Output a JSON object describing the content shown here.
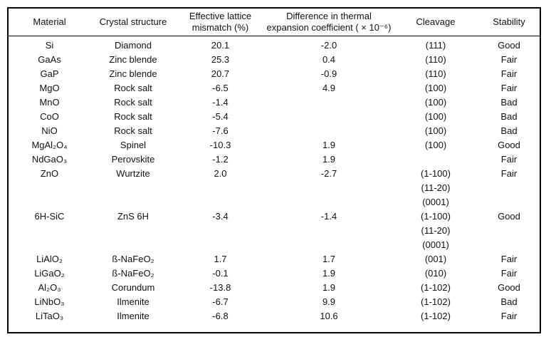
{
  "colors": {
    "background": "#ffffff",
    "border": "#000000",
    "text": "#111111"
  },
  "table": {
    "headers": [
      {
        "lines": [
          "Material"
        ]
      },
      {
        "lines": [
          "Crystal structure"
        ]
      },
      {
        "lines": [
          "Effective lattice",
          "mismatch (%)"
        ]
      },
      {
        "lines": [
          "Difference in thermal",
          "expansion coefficient ( × 10⁻⁶)"
        ]
      },
      {
        "lines": [
          "Cleavage"
        ]
      },
      {
        "lines": [
          "Stability"
        ]
      }
    ],
    "rows": [
      {
        "material": "Si",
        "structure": "Diamond",
        "mismatch": "20.1",
        "diff": "-2.0",
        "cleavage": [
          "(111)"
        ],
        "stability": "Good"
      },
      {
        "material": "GaAs",
        "structure": "Zinc blende",
        "mismatch": "25.3",
        "diff": "0.4",
        "cleavage": [
          "(110)"
        ],
        "stability": "Fair"
      },
      {
        "material": "GaP",
        "structure": "Zinc blende",
        "mismatch": "20.7",
        "diff": "-0.9",
        "cleavage": [
          "(110)"
        ],
        "stability": "Fair"
      },
      {
        "material": "MgO",
        "structure": "Rock salt",
        "mismatch": "-6.5",
        "diff": "4.9",
        "cleavage": [
          "(100)"
        ],
        "stability": "Fair"
      },
      {
        "material": "MnO",
        "structure": "Rock salt",
        "mismatch": "-1.4",
        "diff": "",
        "cleavage": [
          "(100)"
        ],
        "stability": "Bad"
      },
      {
        "material": "CoO",
        "structure": "Rock salt",
        "mismatch": "-5.4",
        "diff": "",
        "cleavage": [
          "(100)"
        ],
        "stability": "Bad"
      },
      {
        "material": "NiO",
        "structure": "Rock salt",
        "mismatch": "-7.6",
        "diff": "",
        "cleavage": [
          "(100)"
        ],
        "stability": "Bad"
      },
      {
        "material": "MgAl₂O₄",
        "structure": "Spinel",
        "mismatch": "-10.3",
        "diff": "1.9",
        "cleavage": [
          "(100)"
        ],
        "stability": "Good"
      },
      {
        "material": "NdGaO₃",
        "structure": "Perovskite",
        "mismatch": "-1.2",
        "diff": "1.9",
        "cleavage": [],
        "stability": "Fair"
      },
      {
        "material": "ZnO",
        "structure": "Wurtzite",
        "mismatch": "2.0",
        "diff": "-2.7",
        "cleavage": [
          "(1-100)",
          "(11-20)",
          "(0001)"
        ],
        "stability": "Fair"
      },
      {
        "material": "6H-SiC",
        "structure": "ZnS 6H",
        "mismatch": "-3.4",
        "diff": "-1.4",
        "cleavage": [
          "(1-100)",
          "(11-20)",
          "(0001)"
        ],
        "stability": "Good"
      },
      {
        "material": "LiAlO₂",
        "structure": "ß-NaFeO₂",
        "mismatch": "1.7",
        "diff": "1.7",
        "cleavage": [
          "(001)"
        ],
        "stability": "Fair"
      },
      {
        "material": "LiGaO₂",
        "structure": "ß-NaFeO₂",
        "mismatch": "-0.1",
        "diff": "1.9",
        "cleavage": [
          "(010)"
        ],
        "stability": "Fair"
      },
      {
        "material": "Al₂O₃",
        "structure": "Corundum",
        "mismatch": "-13.8",
        "diff": "1.9",
        "cleavage": [
          "(1-102)"
        ],
        "stability": "Good"
      },
      {
        "material": "LiNbO₃",
        "structure": "Ilmenite",
        "mismatch": "-6.7",
        "diff": "9.9",
        "cleavage": [
          "(1-102)"
        ],
        "stability": "Bad"
      },
      {
        "material": "LiTaO₃",
        "structure": "Ilmenite",
        "mismatch": "-6.8",
        "diff": "10.6",
        "cleavage": [
          "(1-102)"
        ],
        "stability": "Fair"
      }
    ]
  }
}
